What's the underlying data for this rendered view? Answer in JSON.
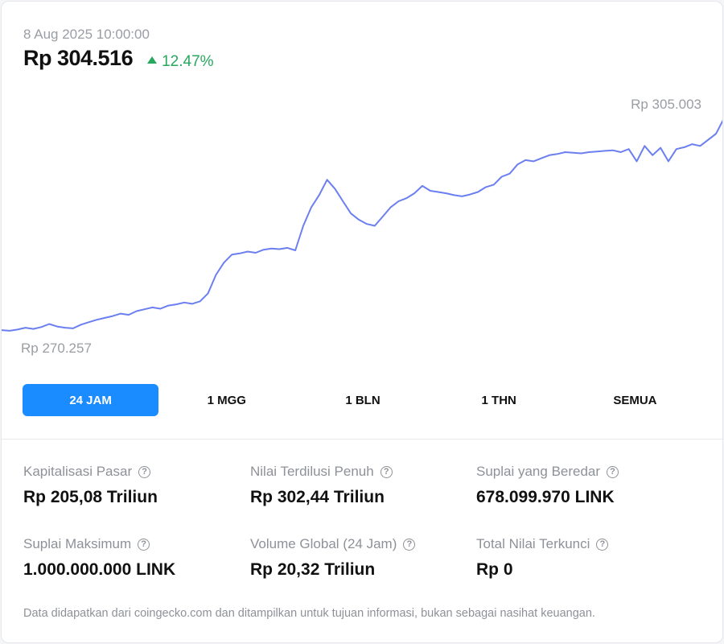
{
  "header": {
    "timestamp": "8 Aug 2025 10:00:00",
    "price": "Rp 304.516",
    "change": "12.47%",
    "change_color": "#27a85e"
  },
  "chart_data": {
    "type": "line",
    "high_label": "Rp 305.003",
    "low_label": "Rp 270.257",
    "ylim": [
      270257,
      305003
    ],
    "line_color": "#6b7ff0",
    "values": [
      270500,
      270400,
      270600,
      270900,
      270700,
      271000,
      271500,
      271100,
      270900,
      270800,
      271400,
      271800,
      272200,
      272500,
      272800,
      273200,
      273000,
      273600,
      273900,
      274200,
      274000,
      274500,
      274700,
      275000,
      274800,
      275200,
      276500,
      279500,
      281500,
      282800,
      283000,
      283300,
      283100,
      283600,
      283800,
      283700,
      283900,
      283500,
      287500,
      290500,
      292500,
      295000,
      293500,
      291500,
      289500,
      288500,
      287800,
      287500,
      289000,
      290500,
      291500,
      292000,
      292800,
      294000,
      293200,
      293000,
      292800,
      292500,
      292300,
      292600,
      293000,
      293800,
      294200,
      295500,
      296000,
      297500,
      298200,
      298000,
      298500,
      299000,
      299200,
      299500,
      299400,
      299300,
      299500,
      299600,
      299700,
      299800,
      299500,
      300000,
      298000,
      300500,
      299000,
      300200,
      298000,
      300000,
      300300,
      300800,
      300500,
      301500,
      302500,
      305003
    ]
  },
  "tabs": [
    {
      "label": "24 JAM",
      "active": true
    },
    {
      "label": "1 MGG",
      "active": false
    },
    {
      "label": "1 BLN",
      "active": false
    },
    {
      "label": "1 THN",
      "active": false
    },
    {
      "label": "SEMUA",
      "active": false
    }
  ],
  "stats": [
    {
      "label": "Kapitalisasi Pasar",
      "value": "Rp 205,08 Triliun"
    },
    {
      "label": "Nilai Terdilusi Penuh",
      "value": "Rp 302,44 Triliun"
    },
    {
      "label": "Suplai yang Beredar",
      "value": "678.099.970 LINK"
    },
    {
      "label": "Suplai Maksimum",
      "value": "1.000.000.000 LINK"
    },
    {
      "label": "Volume Global (24 Jam)",
      "value": "Rp 20,32 Triliun"
    },
    {
      "label": "Total Nilai Terkunci",
      "value": "Rp 0"
    }
  ],
  "help_icon": "?",
  "disclaimer": "Data didapatkan dari coingecko.com dan ditampilkan untuk tujuan informasi, bukan sebagai nasihat keuangan."
}
